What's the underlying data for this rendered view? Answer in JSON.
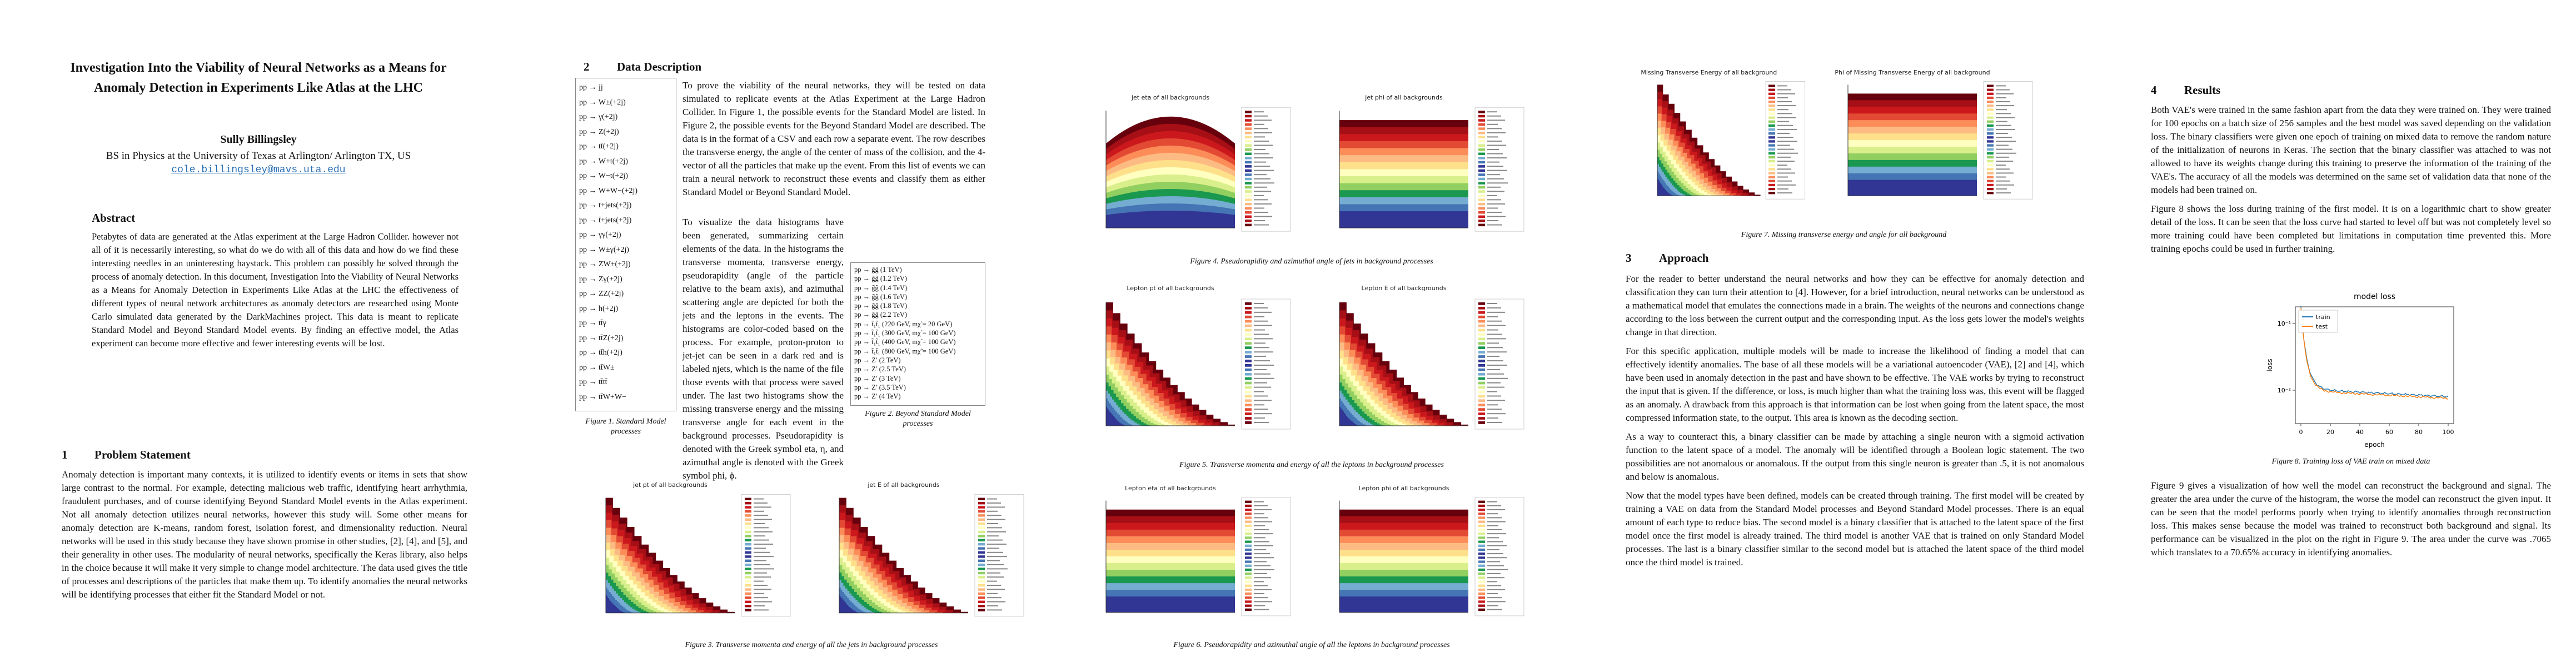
{
  "title": "Investigation Into the Viability of Neural Networks as a Means for Anomaly Detection in Experiments Like Atlas at the LHC",
  "author": "Sully Billingsley",
  "affiliation": "BS in Physics at the University of Texas at Arlington/ Arlington TX, US",
  "email": "cole.billingsley@mavs.uta.edu",
  "abstract": {
    "heading": "Abstract",
    "text": "Petabytes of data are generated at the Atlas experiment at the Large Hadron Collider. however not all of it is necessarily interesting, so what do we do with all of this data and how do we find these interesting needles in an uninteresting haystack. This problem can possibly be solved through the process of anomaly detection. In this document, Investigation Into the Viability of Neural Networks as a Means for Anomaly Detection in Experiments Like Atlas at the LHC the effectiveness of different types of neural network architectures as anomaly detectors are researched using Monte Carlo simulated data generated by the DarkMachines project. This data is meant to replicate Standard Model and Beyond Standard Model events. By finding an effective model, the Atlas experiment can become more effective and fewer interesting events will be lost."
  },
  "sections": [
    {
      "number": "1",
      "heading": "Problem Statement",
      "paragraphs": [
        "Anomaly detection is important many contexts, it is utilized to identify events or items in sets that show large contrast to the normal. For example, detecting malicious web traffic, identifying heart arrhythmia, fraudulent purchases, and of course identifying Beyond Standard Model events in the Atlas experiment. Not all anomaly detection utilizes neural networks, however this study will. Some other means for anomaly detection are K-means, random forest, isolation forest, and dimensionality reduction. Neural networks will be used in this study because they have shown promise in other studies, [2], [4], and [5], and their generality in other uses. The modularity of neural networks, specifically the Keras library, also helps in the choice because it will make it very simple to change model architecture. The data used gives the title of processes and descriptions of the particles that make them up. To identify anomalies the neural networks will be identifying processes that either fit the Standard Model or not."
      ]
    },
    {
      "number": "2",
      "heading": "Data Description",
      "paragraphs": [
        "To prove the viability of the neural networks, they will be tested on data simulated to replicate events at the Atlas Experiment at the Large Hadron Collider. In Figure 1, the possible events for the Standard Model are listed. In Figure 2, the possible events for the Beyond Standard Model are described. The data is in the format of a CSV and each row a separate event. The row describes the transverse energy, the angle of the center of mass of the collision, and the 4-vector of all the particles that make up the event. From this list of events we can train a neural network to reconstruct these events and classify them as either Standard Model or Beyond Standard Model.",
        "To visualize the data histograms have been generated, summarizing certain elements of the data. In the histograms the transverse momenta, transverse energy, pseudorapidity (angle of the particle relative to the beam axis), and azimuthal scattering angle are depicted for both the jets and the leptons in the events. The histograms are color-coded based on the process. For example, proton-proton to jet-jet can be seen in a dark red and is labeled njets, which is the name of the file those events with that process were saved under. The last two histograms show the missing transverse energy and the missing transverse angle for each event in the background processes. Pseudorapidity is denoted with the Greek symbol eta, η, and azimuthal angle is denoted with the Greek symbol phi, ϕ."
      ]
    },
    {
      "number": "3",
      "heading": "Approach",
      "paragraphs": [
        "For the reader to better understand the neural networks and how they can be effective for anomaly detection and classification they can turn their attention to [4]. However, for a brief introduction, neural networks can be understood as a mathematical model that emulates the connections made in a brain. The weights of the neurons and connections change according to the loss between the current output and the corresponding input. As the loss gets lower the model's weights change in that direction.",
        "For this specific application, multiple models will be made to increase the likelihood of finding a model that can effectively identify anomalies. The base of all these models will be a variational autoencoder (VAE), [2] and [4], which have been used in anomaly detection in the past and have shown to be effective. The VAE works by trying to reconstruct the input that is given. If the difference, or loss, is much higher than what the training loss was, this event will be flagged as an anomaly. A drawback from this approach is that information can be lost when going from the latent space, the most compressed information state, to the output. This area is known as the decoding section.",
        "As a way to counteract this, a binary classifier can be made by attaching a single neuron with a sigmoid activation function to the latent space of a model. The anomaly will be identified through a Boolean logic statement. The two possibilities are not anomalous or anomalous. If the output from this single neuron is greater than .5, it is not anomalous and below is anomalous.",
        "Now that the model types have been defined, models can be created through training. The first model will be created by training a VAE on data from the Standard Model processes and Beyond Standard Model processes. There is an equal amount of each type to reduce bias. The second model is a binary classifier that is attached to the latent space of the first model once the first model is already trained. The third model is another VAE that is trained on only Standard Model processes. The last is a binary classifier similar to the second model but is attached the latent space of the third model once the third model is trained."
      ]
    },
    {
      "number": "4",
      "heading": "Results",
      "paragraphs": [
        "Both VAE's were trained in the same fashion apart from the data they were trained on. They were trained for 100 epochs on a batch size of 256 samples and the best model was saved depending on the validation loss. The binary classifiers were given one epoch of training on mixed data to remove the random nature of the initialization of neurons in Keras. The section that the binary classifier was attached to was not allowed to have its weights change during this training to preserve the information of the training of the VAE's. The accuracy of all the models was determined on the same set of validation data that none of the models had been trained on.",
        "Figure 8 shows the loss during training of the first model. It is on a logarithmic chart to show greater detail of the loss. It can be seen that the loss curve had started to level off but was not completely level so more training could have been completed but limitations in computation time prevented this. More training epochs could be used in further training.",
        "Figure 9 gives a visualization of how well the model can reconstruct the background and signal. The greater the area under the curve of the histogram, the worse the model can reconstruct the given input. It can be seen that the model performs poorly when trying to identify anomalies through reconstruction loss. This makes sense because the model was trained to reconstruct both background and signal. Its performance can be visualized in the plot on the right in Figure 9. The area under the curve was .7065 which translates to a 70.65% accuracy in identifying anomalies."
      ]
    }
  ],
  "figures": [
    {
      "caption": "Figure 1. Standard Model processes",
      "rows": [
        "pp → jj",
        "pp → W±(+2j)",
        "pp → γ(+2j)",
        "pp → Z(+2j)",
        "pp → tt̄(+2j)",
        "pp → W+t(+2j)",
        "pp → W−t(+2j)",
        "pp → W+W−(+2j)",
        "pp → t+jets(+2j)",
        "pp → t̄+jets(+2j)",
        "pp → γγ(+2j)",
        "pp → W±γ(+2j)",
        "pp → ZW±(+2j)",
        "pp → Zγ(+2j)",
        "pp → ZZ(+2j)",
        "pp → h(+2j)",
        "pp → tt̄γ",
        "pp → tt̄Z(+2j)",
        "pp → tt̄h(+2j)",
        "pp → tt̄W±",
        "pp → tt̄tt̄",
        "pp → tt̄W+W−"
      ]
    },
    {
      "caption": "Figure 2. Beyond Standard Model processes",
      "rows": [
        "pp → g̃g̃ (1 TeV)",
        "pp → g̃g̃ (1.2 TeV)",
        "pp → g̃g̃ (1.4 TeV)",
        "pp → g̃g̃ (1.6 TeV)",
        "pp → g̃g̃ (1.8 TeV)",
        "pp → g̃g̃ (2.2 TeV)",
        "pp → t̃₁t̃₁ (220 GeV, mχ̃ = 20 GeV)",
        "pp → t̃₁t̃₁ (300 GeV, mχ̃ = 100 GeV)",
        "pp → t̃₁t̃₁ (400 GeV, mχ̃ = 100 GeV)",
        "pp → t̃₁t̃₁ (800 GeV, mχ̃ = 100 GeV)",
        "pp → Z′ (2 TeV)",
        "pp → Z′ (2.5 TeV)",
        "pp → Z′ (3 TeV)",
        "pp → Z′ (3.5 TeV)",
        "pp → Z′ (4 TeV)"
      ]
    },
    {
      "caption": "Figure 3. Transverse momenta and energy of all the jets in background processes",
      "plot_titles": [
        "jet pt of all backgrounds",
        "jet E of all backgrounds"
      ]
    },
    {
      "caption": "Figure 4. Pseudorapidity and azimuthal angle of jets in background processes",
      "plot_titles": [
        "jet eta of all backgrounds",
        "jet phi of all backgrounds"
      ]
    },
    {
      "caption": "Figure 5. Transverse momenta and energy of all the leptons in background processes",
      "plot_titles": [
        "Lepton pt of all backgrounds",
        "Lepton E of all backgrounds"
      ]
    },
    {
      "caption": "Figure 6. Pseudorapidity and azimuthal angle of all the leptons in background processes",
      "plot_titles": [
        "Lepton eta of all backgrounds",
        "Lepton phi of all backgrounds"
      ]
    },
    {
      "caption": "Figure 7. Missing transverse energy and angle for all background",
      "plot_titles": [
        "Missing Transverse Energy of all background",
        "Phi of Missing Transverse Energy of all background"
      ]
    },
    {
      "caption": "Figure 8. Training loss of VAE train on mixed data",
      "title": "model loss",
      "legend": [
        "train",
        "test"
      ],
      "xlabel": "epoch",
      "ylabel": "loss",
      "xticks": [
        0,
        20,
        40,
        60,
        80,
        100
      ],
      "yticks": [
        "10⁻¹",
        "10⁻²"
      ]
    }
  ]
}
